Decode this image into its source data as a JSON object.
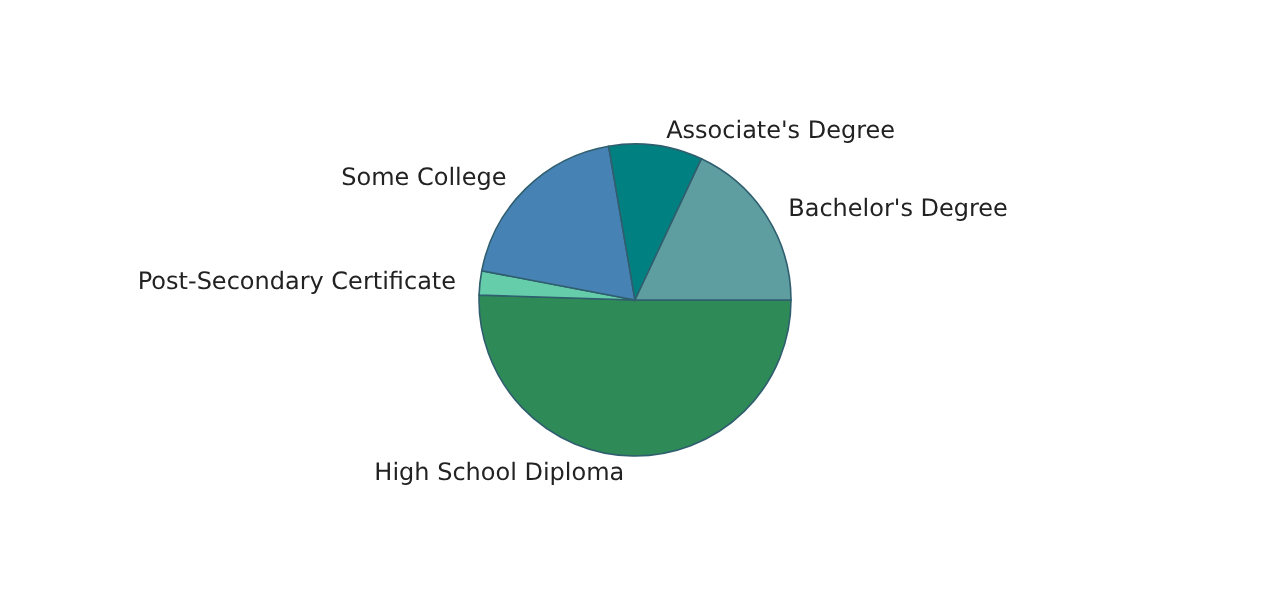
{
  "chart_data": {
    "type": "pie",
    "categories": [
      "High School Diploma",
      "Post-Secondary Certificate",
      "Some College",
      "Associate's Degree",
      "Bachelor's Degree"
    ],
    "values": [
      50.5,
      2.5,
      19.3,
      9.7,
      18.0
    ],
    "colors": [
      "#2e8b57",
      "#66cdaa",
      "#4682b4",
      "#008080",
      "#5f9ea0"
    ]
  }
}
